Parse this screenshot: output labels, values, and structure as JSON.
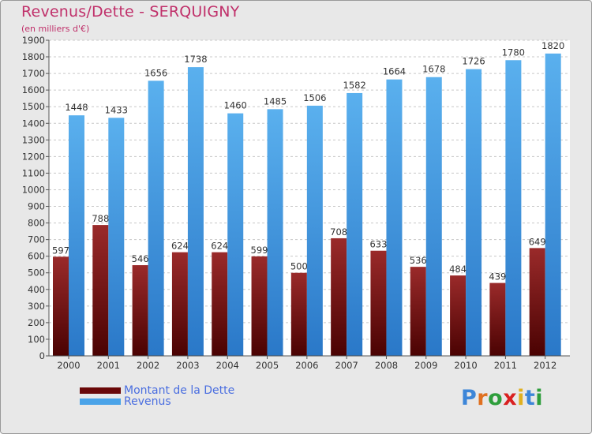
{
  "chart_data": {
    "type": "bar",
    "title": "Revenus/Dette - SERQUIGNY",
    "subtitle": "(en milliers d'€)",
    "xlabel": "",
    "ylabel": "",
    "ylim": [
      0,
      1900
    ],
    "yticks": [
      0,
      100,
      200,
      300,
      400,
      500,
      600,
      700,
      800,
      900,
      1000,
      1100,
      1200,
      1300,
      1400,
      1500,
      1600,
      1700,
      1800,
      1900
    ],
    "grid": true,
    "legend_position": "bottom-left",
    "categories": [
      "2000",
      "2001",
      "2002",
      "2003",
      "2004",
      "2005",
      "2006",
      "2007",
      "2008",
      "2009",
      "2010",
      "2011",
      "2012"
    ],
    "series": [
      {
        "name": "Montant de la Dette",
        "color": "#7a0c0c",
        "values": [
          597,
          788,
          546,
          624,
          624,
          599,
          500,
          708,
          633,
          536,
          484,
          439,
          649
        ]
      },
      {
        "name": "Revenus",
        "color": "#4aa3e8",
        "values": [
          1448,
          1433,
          1656,
          1738,
          1460,
          1485,
          1506,
          1582,
          1664,
          1678,
          1726,
          1780,
          1820
        ]
      }
    ]
  },
  "logo": {
    "letters": [
      "P",
      "r",
      "o",
      "x",
      "i",
      "t",
      "i"
    ],
    "colors": [
      "#3d86d8",
      "#e07020",
      "#2e9e3c",
      "#d92020",
      "#e0b020",
      "#3d86d8",
      "#2e9e3c"
    ]
  }
}
